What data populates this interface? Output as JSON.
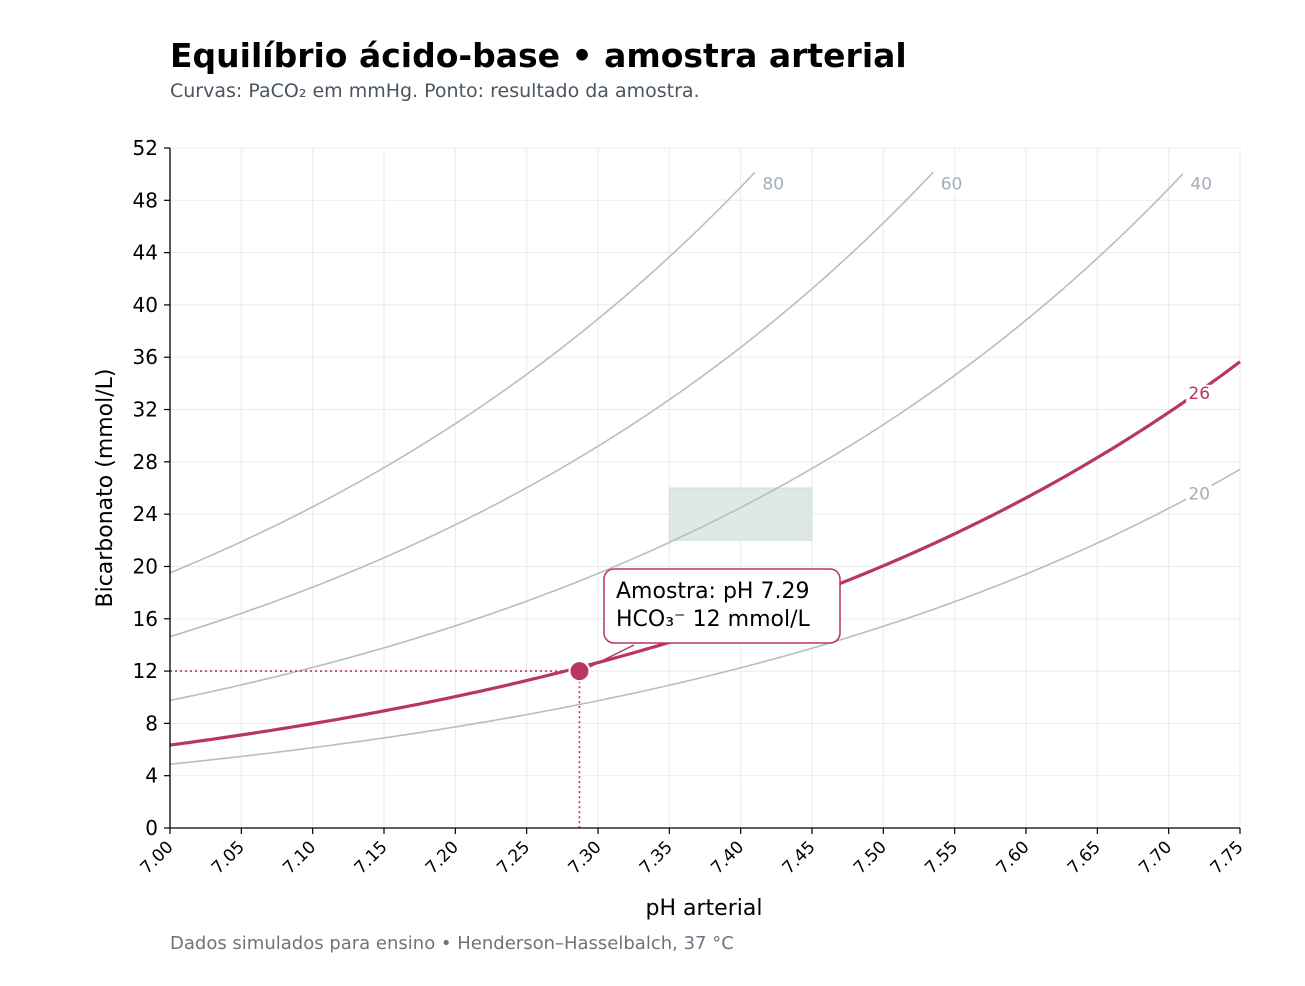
{
  "header": {
    "title": "Equilíbrio ácido-base • amostra arterial",
    "subtitle": "Curvas: PaCO₂ em mmHg. Ponto: resultado da amostra."
  },
  "footer": {
    "note": "Dados simulados para ensino • Henderson–Hasselbalch, 37 °C"
  },
  "chart_data": {
    "type": "line",
    "title": "Equilíbrio ácido-base • amostra arterial",
    "subtitle": "Curvas: PaCO₂ em mmHg. Ponto: resultado da amostra.",
    "xlabel": "pH arterial",
    "ylabel": "Bicarbonato (mmol/L)",
    "xlim": [
      7.0,
      7.75
    ],
    "ylim": [
      0,
      52
    ],
    "xticks": [
      "7.00",
      "7.05",
      "7.10",
      "7.15",
      "7.20",
      "7.25",
      "7.30",
      "7.35",
      "7.40",
      "7.45",
      "7.50",
      "7.55",
      "7.60",
      "7.65",
      "7.70",
      "7.75"
    ],
    "yticks": [
      "0",
      "4",
      "8",
      "12",
      "16",
      "20",
      "24",
      "28",
      "32",
      "36",
      "40",
      "44",
      "48",
      "52"
    ],
    "grid": true,
    "series": [
      {
        "name": "20",
        "x": [
          7.0,
          7.1,
          7.2,
          7.3,
          7.4,
          7.5,
          7.6,
          7.7,
          7.75
        ],
        "values": [
          4.8,
          6.0,
          7.6,
          9.5,
          12.0,
          15.1,
          19.0,
          23.9,
          26.8
        ],
        "color": "#b4bec8",
        "highlight": false
      },
      {
        "name": "26",
        "x": [
          7.0,
          7.1,
          7.2,
          7.3,
          7.4,
          7.5,
          7.6,
          7.7,
          7.75
        ],
        "values": [
          6.2,
          7.8,
          9.8,
          12.4,
          15.6,
          19.6,
          24.7,
          31.1,
          34.9
        ],
        "color": "#b8375e",
        "highlight": true
      },
      {
        "name": "40",
        "x": [
          7.0,
          7.1,
          7.2,
          7.3,
          7.4,
          7.5,
          7.6,
          7.7,
          7.71
        ],
        "values": [
          9.6,
          12.0,
          15.1,
          19.0,
          24.0,
          30.2,
          38.0,
          47.8,
          48.9
        ],
        "color": "#b4bec8",
        "highlight": false
      },
      {
        "name": "60",
        "x": [
          7.0,
          7.1,
          7.2,
          7.3,
          7.4,
          7.5,
          7.535
        ],
        "values": [
          14.4,
          18.1,
          22.7,
          28.6,
          36.0,
          45.3,
          49.1
        ],
        "color": "#b4bec8",
        "highlight": false
      },
      {
        "name": "80",
        "x": [
          7.0,
          7.1,
          7.2,
          7.3,
          7.4,
          7.41
        ],
        "values": [
          19.1,
          24.1,
          30.3,
          38.1,
          48.0,
          49.1
        ],
        "color": "#b4bec8",
        "highlight": false
      }
    ],
    "normal_range": {
      "x": [
        7.35,
        7.45
      ],
      "y": [
        22,
        26
      ],
      "color": "#dde9e2"
    },
    "sample_point": {
      "x": 7.287,
      "y": 12,
      "color": "#b8375e"
    },
    "annotation": {
      "line1": "Amostra: pH 7.29",
      "line2": "HCO₃⁻ 12 mmol/L"
    }
  }
}
